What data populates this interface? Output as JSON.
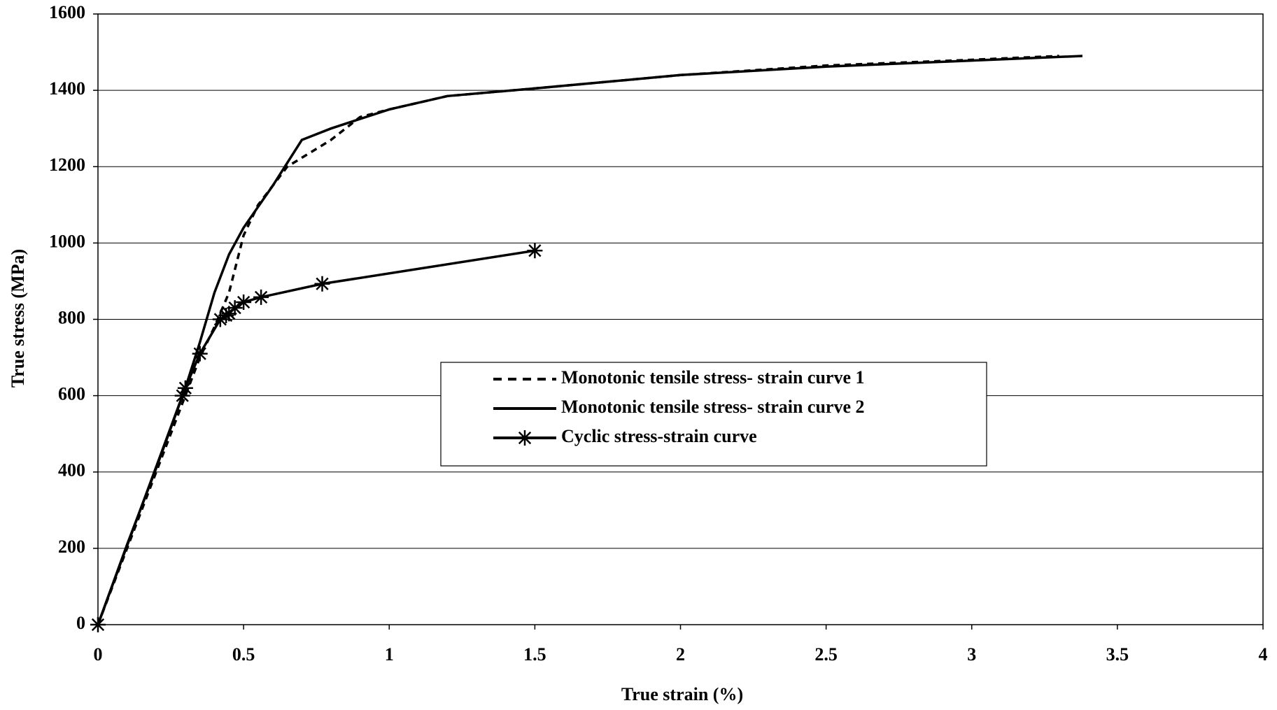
{
  "chart_data": {
    "type": "line",
    "x_label": "True strain (%)",
    "y_label": "True stress (MPa)",
    "xlim": [
      0,
      4
    ],
    "xticks": [
      0,
      0.5,
      1,
      1.5,
      2,
      2.5,
      3,
      3.5,
      4
    ],
    "ylim": [
      0,
      1600
    ],
    "yticks": [
      0,
      200,
      400,
      600,
      800,
      1000,
      1200,
      1400,
      1600
    ],
    "grid": true,
    "legend_position": "center",
    "series": [
      {
        "name": "Monotonic tensile stress- strain curve 1",
        "color": "#000000",
        "line_style": "dashed",
        "marker": "none",
        "x": [
          0,
          0.1,
          0.2,
          0.3,
          0.35,
          0.4,
          0.45,
          0.5,
          0.55,
          0.65,
          0.8,
          0.9,
          1.0,
          1.2,
          1.5,
          2,
          2.5,
          3,
          3.3
        ],
        "values": [
          0,
          200,
          400,
          600,
          700,
          780,
          870,
          1020,
          1100,
          1200,
          1270,
          1330,
          1350,
          1385,
          1405,
          1440,
          1465,
          1480,
          1490
        ]
      },
      {
        "name": "Monotonic tensile stress- strain curve 2",
        "color": "#000000",
        "line_style": "solid",
        "marker": "none",
        "x": [
          0,
          0.1,
          0.2,
          0.3,
          0.35,
          0.4,
          0.45,
          0.5,
          0.6,
          0.7,
          0.8,
          1.0,
          1.2,
          1.5,
          2,
          2.5,
          3,
          3.38
        ],
        "values": [
          0,
          210,
          410,
          620,
          740,
          870,
          970,
          1040,
          1150,
          1270,
          1300,
          1350,
          1385,
          1405,
          1440,
          1462,
          1478,
          1490
        ]
      },
      {
        "name": "Cyclic stress-strain curve",
        "color": "#000000",
        "line_style": "solid",
        "marker": "asterisk",
        "x": [
          0,
          0.29,
          0.3,
          0.35,
          0.42,
          0.44,
          0.45,
          0.47,
          0.5,
          0.56,
          0.77,
          1.5
        ],
        "values": [
          0,
          600,
          620,
          710,
          800,
          810,
          815,
          830,
          845,
          858,
          893,
          980
        ]
      }
    ]
  }
}
